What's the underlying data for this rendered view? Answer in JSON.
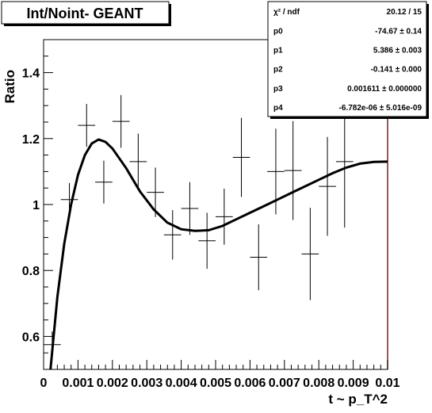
{
  "chart_data": {
    "type": "scatter",
    "title": "Int/Noint- GEANT",
    "xlabel": "t ~ p_T^2",
    "ylabel": "Ratio",
    "xlim": [
      0,
      0.01
    ],
    "ylim": [
      0.5,
      1.5
    ],
    "x_tick_labels": [
      "0",
      "0.001",
      "0.002",
      "0.003",
      "0.004",
      "0.005",
      "0.006",
      "0.007",
      "0.008",
      "0.009",
      "0.01"
    ],
    "y_tick_labels": [
      "0.6",
      "0.8",
      "1",
      "1.2",
      "1.4"
    ],
    "y_tick_values": [
      0.6,
      0.8,
      1.0,
      1.2,
      1.4
    ],
    "grid": false,
    "points": [
      {
        "x": 0.00025,
        "y": 0.575,
        "yerr": 0.04
      },
      {
        "x": 0.00075,
        "y": 1.015,
        "yerr": 0.05
      },
      {
        "x": 0.00125,
        "y": 1.24,
        "yerr": 0.065
      },
      {
        "x": 0.00175,
        "y": 1.068,
        "yerr": 0.065
      },
      {
        "x": 0.00225,
        "y": 1.252,
        "yerr": 0.08
      },
      {
        "x": 0.00275,
        "y": 1.13,
        "yerr": 0.085
      },
      {
        "x": 0.00325,
        "y": 1.037,
        "yerr": 0.075
      },
      {
        "x": 0.00375,
        "y": 0.908,
        "yerr": 0.075
      },
      {
        "x": 0.00425,
        "y": 0.988,
        "yerr": 0.08
      },
      {
        "x": 0.00475,
        "y": 0.89,
        "yerr": 0.085
      },
      {
        "x": 0.00525,
        "y": 0.963,
        "yerr": 0.085
      },
      {
        "x": 0.00575,
        "y": 1.143,
        "yerr": 0.12
      },
      {
        "x": 0.00625,
        "y": 0.84,
        "yerr": 0.1
      },
      {
        "x": 0.00675,
        "y": 1.1,
        "yerr": 0.13
      },
      {
        "x": 0.00725,
        "y": 1.103,
        "yerr": 0.15
      },
      {
        "x": 0.00775,
        "y": 0.85,
        "yerr": 0.14
      },
      {
        "x": 0.00825,
        "y": 1.055,
        "yerr": 0.15
      },
      {
        "x": 0.00875,
        "y": 1.13,
        "yerr": 0.2
      }
    ],
    "fit_curve": {
      "x": [
        0.0002,
        0.0004,
        0.0006,
        0.0008,
        0.001,
        0.0012,
        0.0014,
        0.0016,
        0.0018,
        0.002,
        0.0024,
        0.0028,
        0.0032,
        0.0036,
        0.004,
        0.0044,
        0.0048,
        0.0052,
        0.0056,
        0.006,
        0.0064,
        0.0068,
        0.0072,
        0.0076,
        0.008,
        0.0084,
        0.0088,
        0.0092,
        0.0096,
        0.01
      ],
      "y": [
        0.5,
        0.72,
        0.88,
        1.0,
        1.09,
        1.15,
        1.185,
        1.197,
        1.19,
        1.17,
        1.11,
        1.04,
        0.985,
        0.945,
        0.925,
        0.92,
        0.922,
        0.935,
        0.955,
        0.975,
        0.995,
        1.015,
        1.035,
        1.055,
        1.075,
        1.095,
        1.112,
        1.124,
        1.129,
        1.13
      ]
    }
  },
  "stats_box": {
    "rows": [
      {
        "label": "χ² / ndf",
        "value": "20.12 / 15"
      },
      {
        "label": "p0",
        "value": "-74.67 ± 0.14"
      },
      {
        "label": "p1",
        "value": "5.386 ± 0.003"
      },
      {
        "label": "p2",
        "value": "-0.141 ± 0.000"
      },
      {
        "label": "p3",
        "value": "0.001611 ± 0.000000"
      },
      {
        "label": "p4",
        "value": "-6.782e-06 ± 5.016e-09"
      }
    ]
  },
  "colors": {
    "frame_right": "#8b1a1a",
    "stats_shadow": "#000000",
    "stats_background": "#ffffff"
  }
}
